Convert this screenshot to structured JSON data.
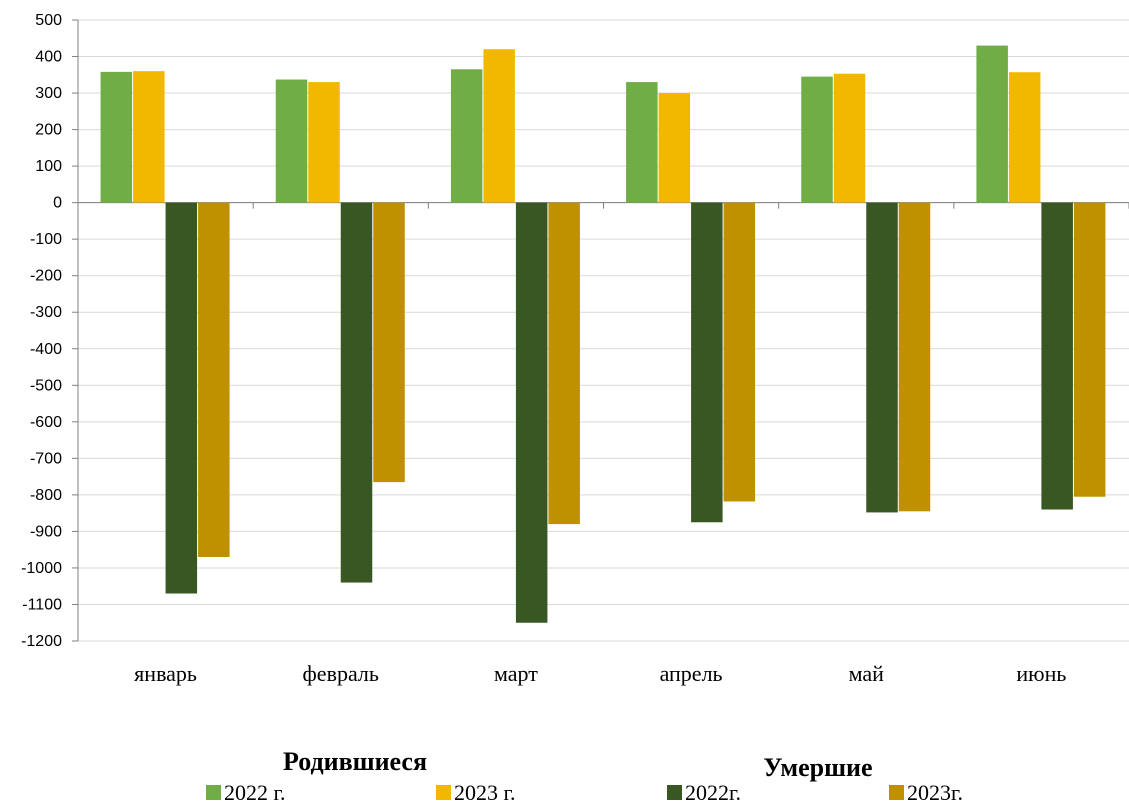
{
  "chart_data": {
    "type": "bar",
    "categories": [
      "январь",
      "февраль",
      "март",
      "апрель",
      "май",
      "июнь"
    ],
    "series": [
      {
        "name": "2022 г.",
        "group": "Родившиеся",
        "color": "#70AD47",
        "values": [
          358,
          337,
          365,
          330,
          345,
          430
        ]
      },
      {
        "name": "2023 г.",
        "group": "Родившиеся",
        "color": "#F2B800",
        "values": [
          360,
          330,
          420,
          300,
          353,
          357
        ]
      },
      {
        "name": "2022г.",
        "group": "Умершие",
        "color": "#385723",
        "values": [
          -1070,
          -1040,
          -1150,
          -875,
          -848,
          -840
        ]
      },
      {
        "name": "2023г.",
        "group": "Умершие",
        "color": "#BF9000",
        "values": [
          -970,
          -765,
          -880,
          -818,
          -845,
          -805
        ]
      }
    ],
    "legend_groups": [
      "Родившиеся",
      "Умершие"
    ],
    "legend_position": "bottom",
    "ylim": [
      -1200,
      500
    ],
    "y_ticks": [
      500,
      400,
      300,
      200,
      100,
      0,
      -100,
      -200,
      -300,
      -400,
      -500,
      -600,
      -700,
      -800,
      -900,
      -1000,
      -1100,
      -1200
    ],
    "grid": true,
    "gridline_color": "#D9D9D9",
    "title": "",
    "xlabel": "",
    "ylabel": ""
  }
}
